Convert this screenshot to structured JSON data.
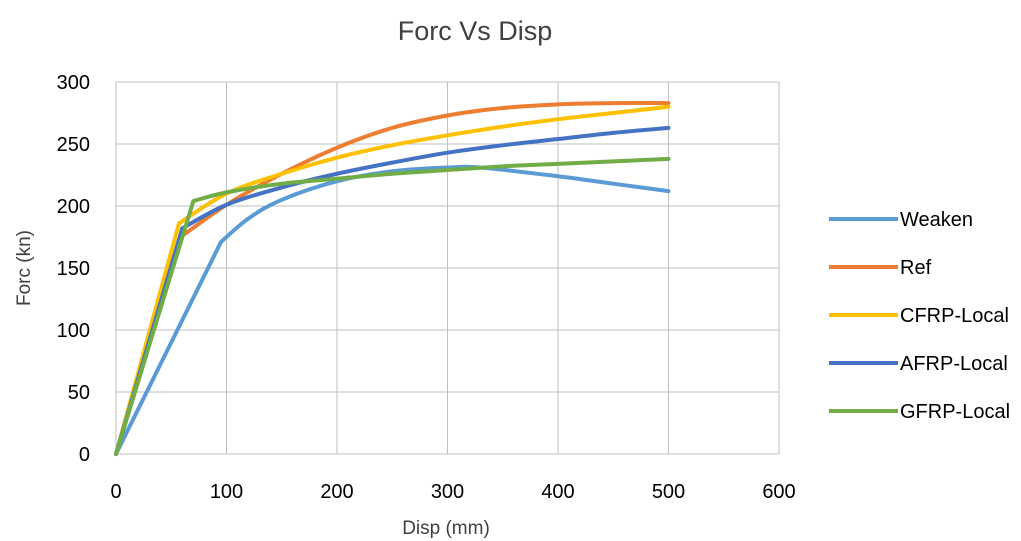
{
  "chart_data": {
    "type": "line",
    "title": "Forc Vs Disp",
    "xlabel": "Disp  (mm)",
    "ylabel": "Forc  (kn)",
    "xlim": [
      0,
      600
    ],
    "ylim": [
      0,
      300
    ],
    "x_ticks": [
      "0",
      "100",
      "200",
      "300",
      "400",
      "500",
      "600"
    ],
    "y_ticks": [
      "0",
      "50",
      "100",
      "150",
      "200",
      "250",
      "300"
    ],
    "grid": true,
    "legend_position": "right",
    "series": [
      {
        "name": "Weaken",
        "color": "#5b9bd5",
        "points": [
          [
            0,
            0
          ],
          [
            95,
            171
          ],
          [
            120,
            190
          ],
          [
            150,
            205
          ],
          [
            200,
            220
          ],
          [
            250,
            228
          ],
          [
            300,
            231
          ],
          [
            330,
            231
          ],
          [
            400,
            224
          ],
          [
            450,
            218
          ],
          [
            500,
            212
          ]
        ]
      },
      {
        "name": "Ref",
        "color": "#ed7d31",
        "points": [
          [
            0,
            0
          ],
          [
            60,
            176
          ],
          [
            100,
            201
          ],
          [
            150,
            226
          ],
          [
            200,
            247
          ],
          [
            250,
            263
          ],
          [
            300,
            273
          ],
          [
            350,
            279
          ],
          [
            400,
            282
          ],
          [
            450,
            283
          ],
          [
            500,
            283
          ]
        ]
      },
      {
        "name": "CFRP-Local",
        "color": "#ffc000",
        "points": [
          [
            0,
            0
          ],
          [
            57,
            186
          ],
          [
            100,
            210
          ],
          [
            150,
            226
          ],
          [
            200,
            239
          ],
          [
            250,
            249
          ],
          [
            300,
            257
          ],
          [
            350,
            264
          ],
          [
            400,
            270
          ],
          [
            450,
            275
          ],
          [
            500,
            280
          ]
        ]
      },
      {
        "name": "AFRP-Local",
        "color": "#4472c4",
        "points": [
          [
            0,
            0
          ],
          [
            60,
            182
          ],
          [
            100,
            201
          ],
          [
            150,
            215
          ],
          [
            200,
            226
          ],
          [
            250,
            235
          ],
          [
            300,
            243
          ],
          [
            350,
            249
          ],
          [
            400,
            254
          ],
          [
            450,
            259
          ],
          [
            500,
            263
          ]
        ]
      },
      {
        "name": "GFRP-Local",
        "color": "#70ad47",
        "points": [
          [
            0,
            0
          ],
          [
            70,
            204
          ],
          [
            100,
            211
          ],
          [
            150,
            218
          ],
          [
            200,
            222
          ],
          [
            250,
            226
          ],
          [
            300,
            229
          ],
          [
            350,
            232
          ],
          [
            400,
            234
          ],
          [
            450,
            236
          ],
          [
            500,
            238
          ]
        ]
      }
    ]
  }
}
